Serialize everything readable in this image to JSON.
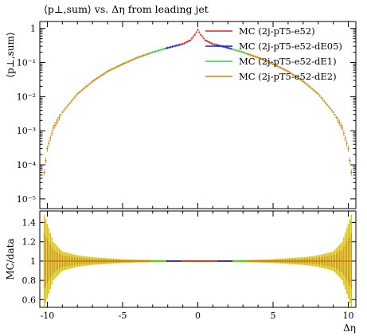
{
  "title": "⟨p⊥,sum⟩ vs. Δη from leading jet",
  "chart_data": [
    {
      "type": "scatter",
      "panel": "main",
      "title": "⟨p⊥,sum⟩ vs. Δη from leading jet",
      "ylabel": "⟨p⊥,sum⟩",
      "xlim": [
        -10.5,
        10.5
      ],
      "ylim": [
        5.2e-06,
        1.6
      ],
      "yscale": "log",
      "yticks": [
        {
          "v": 1,
          "label": "1"
        },
        {
          "v": 0.1,
          "label": "10⁻¹"
        },
        {
          "v": 0.01,
          "label": "10⁻²"
        },
        {
          "v": 0.001,
          "label": "10⁻³"
        },
        {
          "v": 0.0001,
          "label": "10⁻⁴"
        },
        {
          "v": 1e-05,
          "label": "10⁻⁵"
        }
      ],
      "legend_position": "top-right",
      "series": [
        {
          "name": "MC (2j-pT5-e52)",
          "color": "#d62728"
        },
        {
          "name": "MC (2j-pT5-e52-dE05)",
          "color": "#1f1fbf"
        },
        {
          "name": "MC (2j-pT5-e52-dE1)",
          "color": "#3fcf3f"
        },
        {
          "name": "MC (2j-pT5-e52-dE2)",
          "color": "#c8860a"
        }
      ],
      "x": [
        -10.2,
        -10.0,
        -9.6,
        -9.0,
        -8.0,
        -7.0,
        -6.0,
        -5.0,
        -4.0,
        -3.0,
        -2.0,
        -1.0,
        -0.5,
        -0.2,
        0.0,
        0.2,
        0.5,
        1.0,
        2.0,
        3.0,
        4.0,
        5.0,
        6.0,
        7.0,
        8.0,
        9.0,
        9.6,
        10.0,
        10.2
      ],
      "y": [
        6e-05,
        0.0003,
        0.0012,
        0.0035,
        0.012,
        0.028,
        0.055,
        0.09,
        0.14,
        0.2,
        0.27,
        0.35,
        0.45,
        0.65,
        0.9,
        0.65,
        0.45,
        0.35,
        0.27,
        0.2,
        0.14,
        0.09,
        0.055,
        0.028,
        0.012,
        0.0035,
        0.0012,
        0.0003,
        6e-05
      ]
    },
    {
      "type": "scatter",
      "panel": "ratio",
      "xlabel": "Δη",
      "ylabel": "MC/data",
      "xlim": [
        -10.5,
        10.5
      ],
      "ylim": [
        0.52,
        1.52
      ],
      "xticks": [
        -10,
        -5,
        0,
        5,
        10
      ],
      "yticks": [
        0.6,
        0.8,
        1,
        1.2,
        1.4
      ],
      "x": [
        -10.2,
        -9.6,
        -9.0,
        -8.0,
        -7.0,
        -6.0,
        -5.0,
        -4.0,
        -3.0,
        -2.0,
        -1.0,
        0.0,
        1.0,
        2.0,
        3.0,
        4.0,
        5.0,
        6.0,
        7.0,
        8.0,
        9.0,
        9.6,
        10.2
      ],
      "y": [
        1,
        1,
        1,
        1,
        1,
        1,
        1,
        1,
        1,
        1,
        1,
        1,
        1,
        1,
        1,
        1,
        1,
        1,
        1,
        1,
        1,
        1,
        1
      ],
      "yerr": [
        0.48,
        0.2,
        0.1,
        0.06,
        0.04,
        0.03,
        0.02,
        0.015,
        0.012,
        0.01,
        0.01,
        0.01,
        0.01,
        0.01,
        0.012,
        0.015,
        0.02,
        0.03,
        0.04,
        0.06,
        0.1,
        0.2,
        0.48
      ]
    }
  ]
}
